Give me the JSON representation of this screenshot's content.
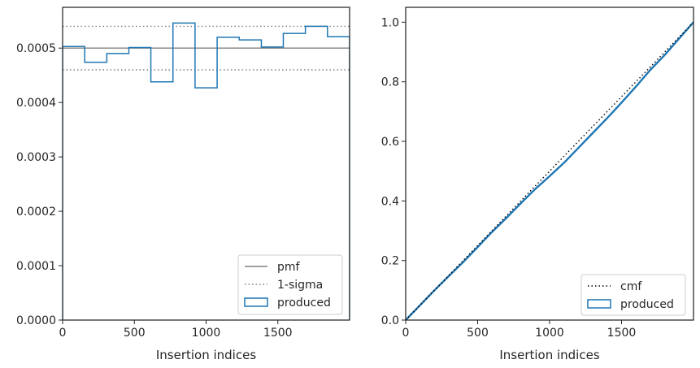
{
  "chart_data": [
    {
      "type": "histogram",
      "xlabel": "Insertion indices",
      "ylabel": "",
      "xlim": [
        0,
        2000
      ],
      "ylim": [
        0,
        0.000575
      ],
      "xticks": [
        0,
        500,
        1000,
        1500
      ],
      "yticks": [
        0,
        0.0001,
        0.0002,
        0.0003,
        0.0004,
        0.0005
      ],
      "ytick_labels": [
        "0.0000",
        "0.0001",
        "0.0002",
        "0.0003",
        "0.0004",
        "0.0005"
      ],
      "xtick_labels": [
        "0",
        "500",
        "1000",
        "1500"
      ],
      "bin_edges": [
        0,
        154,
        308,
        462,
        615,
        769,
        923,
        1077,
        1231,
        1385,
        1538,
        1692,
        1846,
        2000
      ],
      "produced": [
        0.000503,
        0.000474,
        0.00049,
        0.000501,
        0.000438,
        0.000546,
        0.000427,
        0.00052,
        0.000515,
        0.000502,
        0.000527,
        0.00054,
        0.000521
      ],
      "pmf": 0.0005,
      "sigma_upper": 0.00054,
      "sigma_lower": 0.00046,
      "legend": [
        {
          "label": "pmf",
          "style": "solid",
          "color": "#808080"
        },
        {
          "label": "1-sigma",
          "style": "dotted",
          "color": "#808080"
        },
        {
          "label": "produced",
          "style": "patch",
          "color": "#1f77b4"
        }
      ],
      "legend_loc": "lower right",
      "grid": false
    },
    {
      "type": "line",
      "xlabel": "Insertion indices",
      "ylabel": "",
      "xlim": [
        0,
        2000
      ],
      "ylim": [
        0,
        1.05
      ],
      "xticks": [
        0,
        500,
        1000,
        1500
      ],
      "xtick_labels": [
        "0",
        "500",
        "1000",
        "1500"
      ],
      "yticks": [
        0,
        0.2,
        0.4,
        0.6,
        0.8,
        1.0
      ],
      "ytick_labels": [
        "0.0",
        "0.2",
        "0.4",
        "0.6",
        "0.8",
        "1.0"
      ],
      "series": [
        {
          "name": "cmf",
          "style": "dotted",
          "color": "#000000",
          "x": [
            0,
            2000
          ],
          "y": [
            0,
            1
          ]
        },
        {
          "name": "produced",
          "style": "step",
          "color": "#1f77b4",
          "x": [
            0,
            100,
            200,
            300,
            400,
            500,
            600,
            700,
            800,
            900,
            1000,
            1100,
            1200,
            1300,
            1400,
            1500,
            1600,
            1700,
            1800,
            1900,
            2000
          ],
          "y": [
            0,
            0.05,
            0.1,
            0.148,
            0.195,
            0.245,
            0.296,
            0.343,
            0.392,
            0.44,
            0.483,
            0.528,
            0.578,
            0.628,
            0.678,
            0.73,
            0.784,
            0.84,
            0.89,
            0.945,
            1.0
          ]
        }
      ],
      "legend": [
        {
          "label": "cmf",
          "style": "dotted",
          "color": "#000000"
        },
        {
          "label": "produced",
          "style": "patch",
          "color": "#1f77b4"
        }
      ],
      "legend_loc": "lower right",
      "grid": false
    }
  ]
}
